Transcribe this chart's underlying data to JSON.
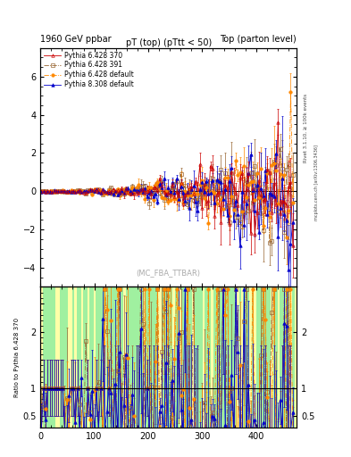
{
  "title_left": "1960 GeV ppbar",
  "title_right": "Top (parton level)",
  "main_title": "pT (top) (pTtt < 50)",
  "watermark": "(MC_FBA_TTBAR)",
  "right_label1": "Rivet 3.1.10, ≥ 100k events",
  "right_label2": "mcplots.cern.ch [arXiv:1306.3436]",
  "ylabel_ratio": "Ratio to Pythia 6.428 370",
  "ylim_main": [
    -5.0,
    7.5
  ],
  "ylim_ratio": [
    0.3,
    2.8
  ],
  "xlim": [
    0,
    475
  ],
  "xmajor_ticks": [
    0,
    100,
    200,
    300,
    400
  ],
  "yticks_main": [
    -4,
    -2,
    0,
    2,
    4,
    6
  ],
  "yticks_ratio": [
    0.5,
    1.0,
    1.5,
    2.0,
    2.5
  ],
  "series": [
    {
      "label": "Pythia 6.428 370",
      "color": "#cc0000",
      "style": "solid",
      "marker": "^",
      "filled": false,
      "ms": 2.5
    },
    {
      "label": "Pythia 6.428 391",
      "color": "#996633",
      "style": "dashdot",
      "marker": "s",
      "filled": false,
      "ms": 2.5
    },
    {
      "label": "Pythia 6.428 default",
      "color": "#ff8800",
      "style": "dashdot",
      "marker": "o",
      "filled": true,
      "ms": 2.5
    },
    {
      "label": "Pythia 8.308 default",
      "color": "#0000cc",
      "style": "solid",
      "marker": "^",
      "filled": true,
      "ms": 2.5
    }
  ],
  "bg_green": "#90ee90",
  "bg_yellow": "#ffff99",
  "n_points": 120,
  "n_bg_bands": 120
}
